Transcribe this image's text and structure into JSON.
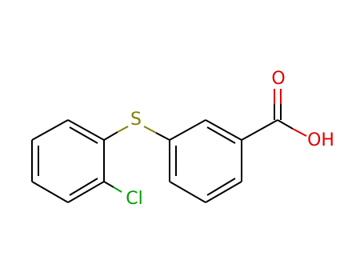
{
  "atoms": [
    {
      "label": "S"
    },
    {
      "label": "Cl"
    },
    {
      "label": "O"
    },
    {
      "label": "OH"
    }
  ]
}
